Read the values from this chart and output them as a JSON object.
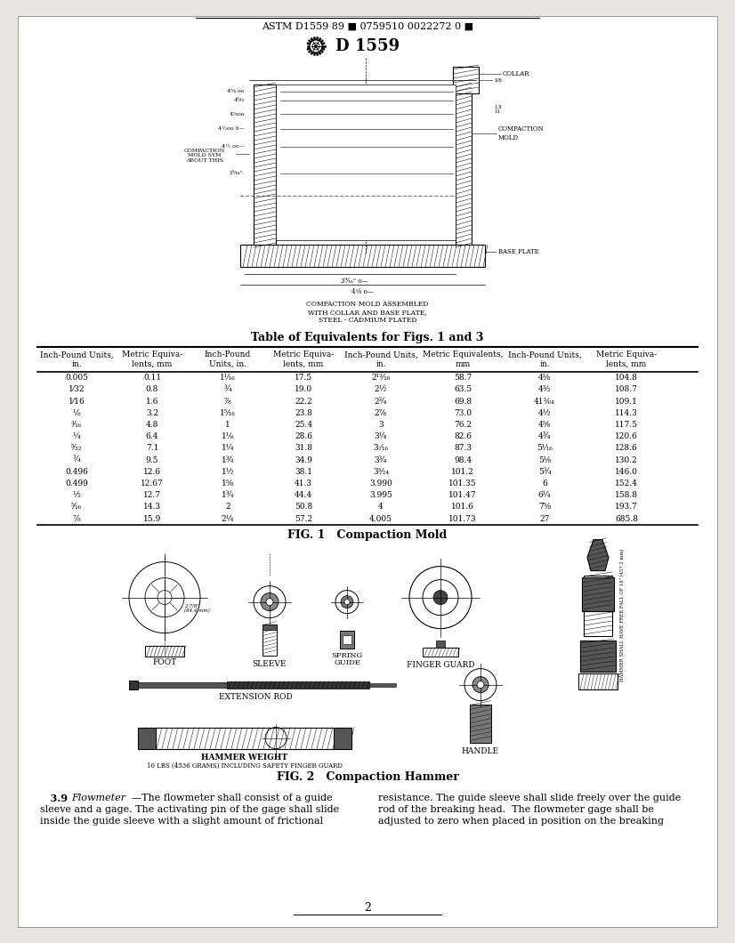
{
  "header_text": "ASTM D1559 89 ■ 0759510 0022272 0 ■",
  "logo_text": "D 1559",
  "table_title": "Table of Equivalents for Figs. 1 and 3",
  "table_headers": [
    "Inch-Pound Units,\nin.",
    "Metric Equiva-\nlents, mm",
    "Inch-Pound\nUnits, in.",
    "Metric Equiva-\nlents, mm",
    "Inch-Pound Units,\nin.",
    "Metric Equivalents,\nmm",
    "Inch-Pound Units,\nin.",
    "Metric Equiva-\nlents, mm"
  ],
  "table_data": [
    [
      "0.005",
      "0.11",
      "1¹⁄₁₆",
      "17.5",
      "2¹³⁄₁₆",
      "58.7",
      "4¹⁄₈",
      "104.8"
    ],
    [
      "1⁄32",
      "0.8",
      "¾",
      "19.0",
      "2½",
      "63.5",
      "4³⁄₂",
      "108.7"
    ],
    [
      "1⁄16",
      "1.6",
      "⁷⁄₈",
      "22.2",
      "2¾",
      "69.8",
      "41³⁄₆₄",
      "109.1"
    ],
    [
      "⅛",
      "3.2",
      "1⁵⁄₁₆",
      "23.8",
      "2⁷⁄₈",
      "73.0",
      "4½",
      "114.3"
    ],
    [
      "³⁄₁₆",
      "4.8",
      "1",
      "25.4",
      "3",
      "76.2",
      "4⁵⁄₈",
      "117.5"
    ],
    [
      "¼",
      "6.4",
      "1⅛",
      "28.6",
      "3¼",
      "82.6",
      "4¾",
      "120.6"
    ],
    [
      "⁵⁄₃₂",
      "7.1",
      "1¼",
      "31.8",
      "3·⁄₁₆",
      "87.3",
      "5¹⁄₁₆",
      "128.6"
    ],
    [
      "¾",
      "9.5",
      "1¾",
      "34.9",
      "3¾",
      "98.4",
      "5¹⁄₈",
      "130.2"
    ],
    [
      "0.496",
      "12.6",
      "1½",
      "38.1",
      "3³⁄₂₄",
      "101.2",
      "5¾",
      "146.0"
    ],
    [
      "0.499",
      "12.67",
      "1⁵⁄₈",
      "41.3",
      "3.990",
      "101.35",
      "6",
      "152.4"
    ],
    [
      "½",
      "12.7",
      "1¾",
      "44.4",
      "3.995",
      "101.47",
      "6¼",
      "158.8"
    ],
    [
      "⁵⁄₁₆",
      "14.3",
      "2",
      "50.8",
      "4",
      "101.6",
      "7⁵⁄₈",
      "193.7"
    ],
    [
      "⅞",
      "15.9",
      "2¼",
      "57.2",
      "4.005",
      "101.73",
      "27",
      "685.8"
    ]
  ],
  "fig1_caption": "FIG. 1   Compaction Mold",
  "fig2_caption": "FIG. 2   Compaction Hammer",
  "footer_left_line1": "3.9   Flowmeter—The flowmeter shall consist of a guide",
  "footer_left_line2": "sleeve and a gage. The activating pin of the gage shall slide",
  "footer_left_line3": "inside the guide sleeve with a slight amount of frictional",
  "footer_right_line1": "resistance. The guide sleeve shall slide freely over the guide",
  "footer_right_line2": "rod of the breaking head. The flowmeter gage shall be",
  "footer_right_line3": "adjusted to zero when placed in position on the breaking",
  "page_number": "2",
  "bg_color": "#e8e5e0",
  "page_color": "#ffffff",
  "text_color": "#000000"
}
